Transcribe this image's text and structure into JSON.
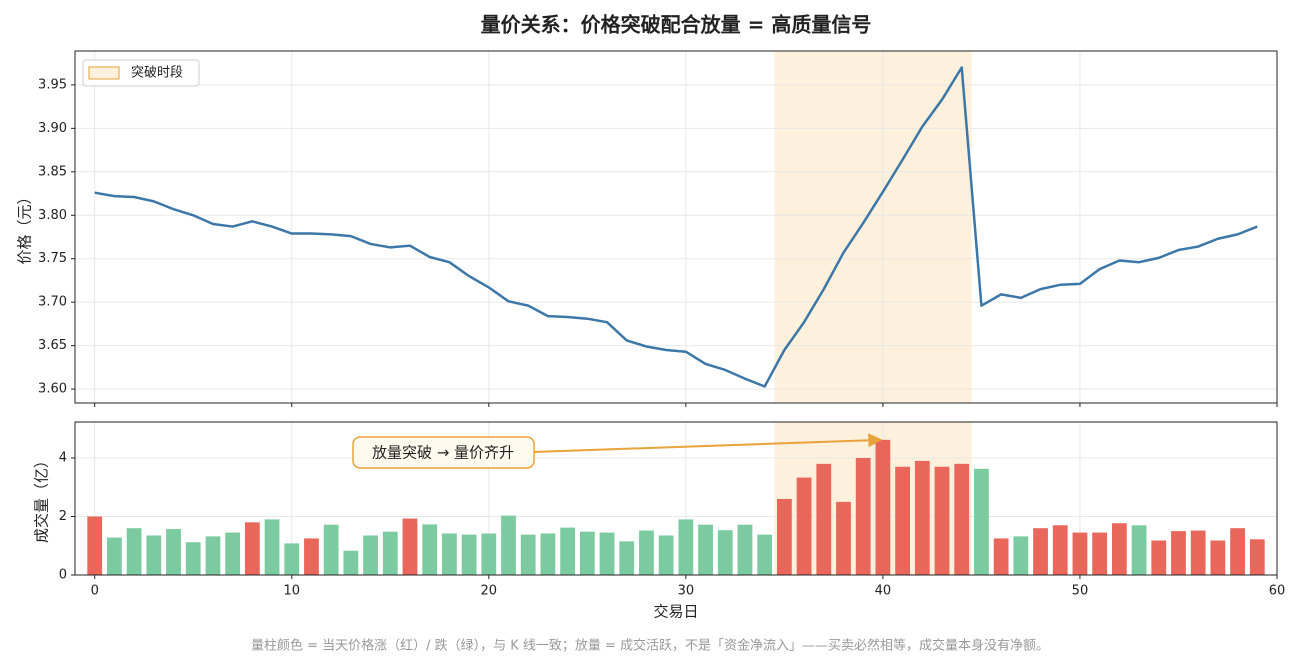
{
  "title": "量价关系：价格突破配合放量 = 高质量信号",
  "note": "量柱颜色 = 当天价格涨（红）/ 跌（绿），与 K 线一致；放量 = 成交活跃，不是「资金净流入」——买卖必然相等，成交量本身没有净额。",
  "chart_data": [
    {
      "type": "line",
      "ylabel": "价格（元）",
      "x": [
        0,
        1,
        2,
        3,
        4,
        5,
        6,
        7,
        8,
        9,
        10,
        11,
        12,
        13,
        14,
        15,
        16,
        17,
        18,
        19,
        20,
        21,
        22,
        23,
        24,
        25,
        26,
        27,
        28,
        29,
        30,
        31,
        32,
        33,
        34,
        35,
        36,
        37,
        38,
        39,
        40,
        41,
        42,
        43,
        44,
        45,
        46,
        47,
        48,
        49,
        50,
        51,
        52,
        53,
        54,
        55,
        56,
        57,
        58,
        59
      ],
      "series": [
        {
          "color": "#3d77a8",
          "values": [
            3.826,
            3.822,
            3.821,
            3.816,
            3.807,
            3.8,
            3.79,
            3.787,
            3.793,
            3.787,
            3.779,
            3.779,
            3.778,
            3.776,
            3.767,
            3.763,
            3.765,
            3.752,
            3.746,
            3.73,
            3.717,
            3.701,
            3.696,
            3.684,
            3.683,
            3.681,
            3.677,
            3.656,
            3.649,
            3.645,
            3.643,
            3.629,
            3.622,
            3.612,
            3.603,
            3.645,
            3.677,
            3.715,
            3.757,
            3.791,
            3.827,
            3.864,
            3.902,
            3.933,
            3.97,
            3.696,
            3.709,
            3.705,
            3.715,
            3.72,
            3.721,
            3.738,
            3.748,
            3.746,
            3.751,
            3.76,
            3.764,
            3.773,
            3.778,
            3.787
          ]
        }
      ],
      "span": {
        "start": 34.5,
        "end": 44.5,
        "label": "突破时段",
        "color": "#fdf0dc",
        "edge": "#e8a33a"
      },
      "legend": "upper left",
      "grid": true,
      "xlim": [
        -1,
        60
      ],
      "xticks": [
        0,
        10,
        20,
        30,
        40,
        50,
        60
      ],
      "ylim": [
        3.584,
        3.989
      ],
      "yticks": [
        {
          "value": 3.6,
          "label": "3.60"
        },
        3.65,
        {
          "value": 3.7,
          "label": "3.70"
        },
        3.75,
        {
          "value": 3.8,
          "label": "3.80"
        },
        3.85,
        {
          "value": 3.9,
          "label": "3.90"
        },
        3.95
      ]
    },
    {
      "type": "bar",
      "ylabel": "成交量（亿）",
      "xlabel": "交易日",
      "x": [
        0,
        1,
        2,
        3,
        4,
        5,
        6,
        7,
        8,
        9,
        10,
        11,
        12,
        13,
        14,
        15,
        16,
        17,
        18,
        19,
        20,
        21,
        22,
        23,
        24,
        25,
        26,
        27,
        28,
        29,
        30,
        31,
        32,
        33,
        34,
        35,
        36,
        37,
        38,
        39,
        40,
        41,
        42,
        43,
        44,
        45,
        46,
        47,
        48,
        49,
        50,
        51,
        52,
        53,
        54,
        55,
        56,
        57,
        58,
        59
      ],
      "values": [
        2.0,
        1.28,
        1.6,
        1.35,
        1.57,
        1.12,
        1.32,
        1.45,
        1.8,
        1.9,
        1.08,
        1.25,
        1.72,
        0.83,
        1.35,
        1.48,
        1.93,
        1.73,
        1.42,
        1.38,
        1.42,
        2.03,
        1.38,
        1.42,
        1.62,
        1.48,
        1.45,
        1.15,
        1.52,
        1.35,
        1.9,
        1.72,
        1.53,
        1.72,
        1.38,
        2.6,
        3.33,
        3.8,
        2.5,
        4.0,
        4.62,
        3.7,
        3.9,
        3.7,
        3.8,
        3.63,
        1.25,
        1.32,
        1.6,
        1.7,
        1.45,
        1.45,
        1.77,
        1.7,
        1.18,
        1.5,
        1.52,
        1.18,
        1.6,
        1.22
      ],
      "colors": [
        "#e8665a",
        "#7ccba0",
        "#7ccba0",
        "#7ccba0",
        "#7ccba0",
        "#7ccba0",
        "#7ccba0",
        "#7ccba0",
        "#e8665a",
        "#7ccba0",
        "#7ccba0",
        "#e8665a",
        "#7ccba0",
        "#7ccba0",
        "#7ccba0",
        "#7ccba0",
        "#e8665a",
        "#7ccba0",
        "#7ccba0",
        "#7ccba0",
        "#7ccba0",
        "#7ccba0",
        "#7ccba0",
        "#7ccba0",
        "#7ccba0",
        "#7ccba0",
        "#7ccba0",
        "#7ccba0",
        "#7ccba0",
        "#7ccba0",
        "#7ccba0",
        "#7ccba0",
        "#7ccba0",
        "#7ccba0",
        "#7ccba0",
        "#e8665a",
        "#e8665a",
        "#e8665a",
        "#e8665a",
        "#e8665a",
        "#e8665a",
        "#e8665a",
        "#e8665a",
        "#e8665a",
        "#e8665a",
        "#7ccba0",
        "#e8665a",
        "#7ccba0",
        "#e8665a",
        "#e8665a",
        "#e8665a",
        "#e8665a",
        "#e8665a",
        "#7ccba0",
        "#e8665a",
        "#e8665a",
        "#e8665a",
        "#e8665a",
        "#e8665a",
        "#e8665a"
      ],
      "span": {
        "start": 34.5,
        "end": 44.5,
        "color": "#fdf0dc"
      },
      "annotation": {
        "text": "放量突破 → 量价齐升",
        "target": 40,
        "color": "#e8a33a"
      },
      "grid": true,
      "xlim": [
        -1,
        60
      ],
      "xticks": [
        0,
        10,
        20,
        30,
        40,
        50,
        60
      ],
      "ylim": [
        0,
        5.23
      ],
      "yticks": [
        0,
        2,
        4
      ]
    }
  ]
}
